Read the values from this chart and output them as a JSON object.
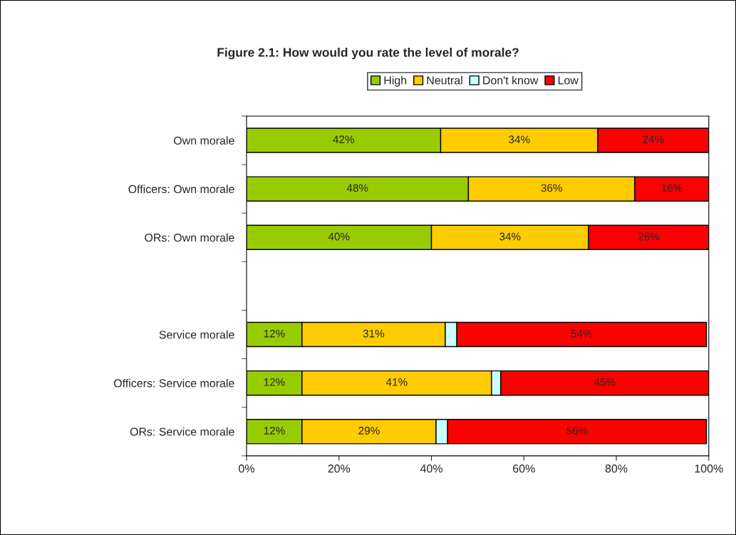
{
  "chart_data": {
    "type": "bar",
    "orientation": "horizontal",
    "stacked": true,
    "title": "Figure 2.1: How would you rate the level of morale?",
    "categories": [
      "Own morale",
      "Officers: Own morale",
      "ORs: Own morale",
      null,
      "Service morale",
      "Officers: Service morale",
      "ORs: Service morale"
    ],
    "series": [
      {
        "name": "High",
        "color": "#99cc00",
        "values": [
          42,
          48,
          40,
          null,
          12,
          12,
          12
        ],
        "value_labels": [
          "42%",
          "48%",
          "40%",
          null,
          "12%",
          "12%",
          "12%"
        ]
      },
      {
        "name": "Neutral",
        "color": "#ffcc00",
        "values": [
          34,
          36,
          34,
          null,
          31,
          41,
          29
        ],
        "value_labels": [
          "34%",
          "36%",
          "34%",
          null,
          "31%",
          "41%",
          "29%"
        ]
      },
      {
        "name": "Don't know",
        "color": "#ccffff",
        "values": [
          null,
          null,
          null,
          null,
          2.5,
          2,
          2.5
        ],
        "value_labels": [
          null,
          null,
          null,
          null,
          null,
          null,
          null
        ]
      },
      {
        "name": "Low",
        "color": "#ff0000",
        "values": [
          24,
          16,
          26,
          null,
          54,
          45,
          56
        ],
        "value_labels": [
          "24%",
          "16%",
          "26%",
          null,
          "54%",
          "45%",
          "56%"
        ]
      }
    ],
    "xlim": [
      0,
      100
    ],
    "xticks": [
      {
        "value": 0,
        "label": "0%"
      },
      {
        "value": 20,
        "label": "20%"
      },
      {
        "value": 40,
        "label": "40%"
      },
      {
        "value": 60,
        "label": "60%"
      },
      {
        "value": 80,
        "label": "80%"
      },
      {
        "value": 100,
        "label": "100%"
      }
    ],
    "legend": "top",
    "grid": false
  }
}
